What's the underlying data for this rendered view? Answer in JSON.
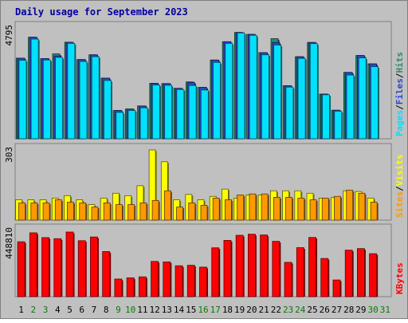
{
  "chart_data": {
    "type": "bar",
    "title": "Daily usage for September 2023",
    "categories": [
      "1",
      "2",
      "3",
      "4",
      "5",
      "6",
      "7",
      "8",
      "9",
      "10",
      "11",
      "12",
      "13",
      "14",
      "15",
      "16",
      "17",
      "18",
      "19",
      "20",
      "21",
      "22",
      "23",
      "24",
      "25",
      "26",
      "27",
      "28",
      "29",
      "30",
      "31"
    ],
    "weekend_days": [
      "2",
      "3",
      "9",
      "10",
      "16",
      "17",
      "23",
      "24",
      "30",
      "31"
    ],
    "panels": [
      {
        "id": "hits",
        "max_label": "4795",
        "ylim": [
          0,
          4795
        ],
        "side_labels": [
          "Pages",
          "Files",
          "Hits"
        ],
        "series": [
          {
            "name": "Hits",
            "color": "#2e8b6b",
            "values": [
              3390,
              4270,
              3370,
              3570,
              4060,
              3330,
              3530,
              2550,
              1190,
              1250,
              1380,
              2330,
              2320,
              2120,
              2390,
              2160,
              3310,
              4080,
              4470,
              4390,
              3620,
              4210,
              2230,
              3450,
              4050,
              1880,
              1200,
              2790,
              3500,
              3150,
              null
            ]
          },
          {
            "name": "Files",
            "color": "#2d46c8",
            "values": [
              3390,
              4270,
              3370,
              3480,
              4060,
              3330,
              3530,
              2550,
              1190,
              1250,
              1380,
              2330,
              2320,
              2120,
              2370,
              2160,
              3310,
              4080,
              4470,
              4390,
              3620,
              4050,
              2230,
              3450,
              4050,
              1880,
              1200,
              2790,
              3500,
              3150,
              null
            ]
          },
          {
            "name": "Pages",
            "color": "#00e0ff",
            "values": [
              3300,
              4190,
              3310,
              3420,
              4010,
              3250,
              3450,
              2450,
              1110,
              1190,
              1300,
              2260,
              2250,
              2070,
              2240,
              2050,
              3210,
              4010,
              4450,
              4350,
              3530,
              3940,
              2170,
              3380,
              4000,
              1850,
              1160,
              2680,
              3400,
              3030,
              null
            ]
          }
        ]
      },
      {
        "id": "visits",
        "max_label": "303",
        "ylim": [
          0,
          303
        ],
        "side_labels": [
          "Sites",
          "Visits"
        ],
        "series": [
          {
            "name": "Visits",
            "color": "#ffff00",
            "values": [
              84,
              84,
              84,
              91,
              101,
              84,
              64,
              91,
              111,
              101,
              142,
              290,
              241,
              84,
              106,
              84,
              98,
              128,
              91,
              104,
              104,
              121,
              121,
              121,
              111,
              91,
              94,
              121,
              118,
              91,
              null
            ]
          },
          {
            "name": "Sites",
            "color": "#ff9900",
            "values": [
              71,
              71,
              71,
              84,
              74,
              71,
              54,
              71,
              64,
              64,
              71,
              81,
              121,
              54,
              71,
              61,
              91,
              84,
              104,
              108,
              108,
              94,
              94,
              91,
              84,
              91,
              98,
              124,
              111,
              74,
              null
            ]
          }
        ]
      },
      {
        "id": "kbytes",
        "max_label": "448810",
        "ylim": [
          0,
          448810
        ],
        "side_labels": [
          "KBytes"
        ],
        "series": [
          {
            "name": "KBytes",
            "color": "#ff0000",
            "values": [
              355000,
              413000,
              382000,
              375000,
              418000,
              362000,
              386000,
              292000,
              114000,
              122000,
              128000,
              228000,
              225000,
              200000,
              203000,
              191000,
              316000,
              364000,
              397000,
              404000,
              399000,
              358000,
              222000,
              317000,
              383000,
              247000,
              108000,
              301000,
              311000,
              278000,
              null
            ]
          }
        ]
      }
    ]
  }
}
